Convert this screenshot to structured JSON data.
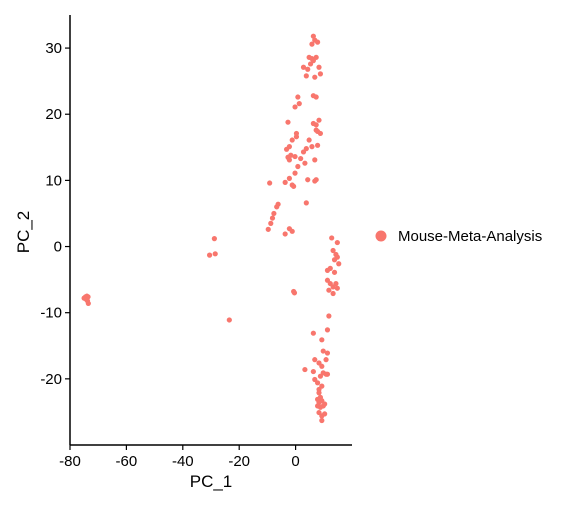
{
  "chart_data": {
    "type": "scatter",
    "title": "",
    "xlabel": "PC_1",
    "ylabel": "PC_2",
    "xlim": [
      -80,
      20
    ],
    "ylim": [
      -30,
      35
    ],
    "xticks": [
      -80,
      -60,
      -40,
      -20,
      0
    ],
    "yticks": [
      -20,
      -10,
      0,
      10,
      20,
      30
    ],
    "grid": false,
    "legend": {
      "position": "right"
    },
    "series": [
      {
        "name": "Mouse-Meta-Analysis",
        "color": "#F8766D",
        "points": [
          [
            -75,
            -7.8
          ],
          [
            -74.5,
            -7.6
          ],
          [
            -74,
            -7.5
          ],
          [
            -73.6,
            -7.6
          ],
          [
            -73.8,
            -8.2
          ],
          [
            -73.5,
            -8.6
          ],
          [
            -74.2,
            -8.0
          ],
          [
            -30.5,
            -1.3
          ],
          [
            -28.5,
            -1.1
          ],
          [
            -28.8,
            1.2
          ],
          [
            -23.5,
            -11.1
          ],
          [
            -9.7,
            2.6
          ],
          [
            -8.8,
            3.5
          ],
          [
            -8.2,
            4.3
          ],
          [
            -7.7,
            5.0
          ],
          [
            -6.7,
            6.0
          ],
          [
            -6.2,
            6.4
          ],
          [
            -9.2,
            9.6
          ],
          [
            -3.7,
            1.9
          ],
          [
            -2.2,
            2.7
          ],
          [
            -1.2,
            2.3
          ],
          [
            -3.2,
            14.7
          ],
          [
            -2.7,
            13.5
          ],
          [
            -2.2,
            13.1
          ],
          [
            -1.7,
            13.8
          ],
          [
            -0.2,
            13.6
          ],
          [
            -2.2,
            15.1
          ],
          [
            -1.2,
            16.1
          ],
          [
            0.3,
            16.6
          ],
          [
            -2.7,
            18.8
          ],
          [
            -3.7,
            9.7
          ],
          [
            -2.2,
            10.3
          ],
          [
            -1.2,
            9.3
          ],
          [
            -0.7,
            9.1
          ],
          [
            -0.2,
            11.1
          ],
          [
            0.8,
            12.1
          ],
          [
            1.8,
            13.3
          ],
          [
            2.8,
            14.3
          ],
          [
            3.8,
            14.8
          ],
          [
            4.8,
            16.1
          ],
          [
            5.8,
            15.1
          ],
          [
            6.8,
            13.1
          ],
          [
            3.3,
            12.6
          ],
          [
            7.8,
            15.3
          ],
          [
            4.3,
            10.1
          ],
          [
            6.8,
            9.9
          ],
          [
            7.3,
            10.1
          ],
          [
            3.8,
            6.6
          ],
          [
            7.3,
            18.4
          ],
          [
            8.3,
            19.1
          ],
          [
            6.3,
            18.6
          ],
          [
            7.3,
            17.6
          ],
          [
            8.8,
            17.1
          ],
          [
            7.8,
            17.4
          ],
          [
            0.3,
            17.1
          ],
          [
            -0.2,
            21.1
          ],
          [
            1.3,
            21.6
          ],
          [
            0.8,
            22.6
          ],
          [
            6.3,
            22.8
          ],
          [
            7.3,
            22.6
          ],
          [
            2.8,
            27.1
          ],
          [
            4.3,
            26.8
          ],
          [
            5.3,
            27.6
          ],
          [
            6.3,
            28.1
          ],
          [
            7.3,
            28.6
          ],
          [
            4.8,
            28.6
          ],
          [
            5.8,
            28.4
          ],
          [
            8.3,
            27.1
          ],
          [
            3.8,
            25.8
          ],
          [
            6.8,
            25.6
          ],
          [
            8.8,
            26.1
          ],
          [
            5.8,
            30.6
          ],
          [
            6.8,
            31.2
          ],
          [
            7.8,
            30.9
          ],
          [
            6.3,
            31.8
          ],
          [
            -0.7,
            -6.8
          ],
          [
            -0.4,
            -7.0
          ],
          [
            12.8,
            1.3
          ],
          [
            14.8,
            0.6
          ],
          [
            13.3,
            -0.6
          ],
          [
            14.3,
            -1.2
          ],
          [
            13.8,
            -2.0
          ],
          [
            15.3,
            -2.6
          ],
          [
            14.8,
            -1.6
          ],
          [
            11.3,
            -3.6
          ],
          [
            12.3,
            -3.3
          ],
          [
            13.8,
            -3.9
          ],
          [
            11.3,
            -5.1
          ],
          [
            12.3,
            -5.6
          ],
          [
            13.3,
            -6.1
          ],
          [
            14.3,
            -5.6
          ],
          [
            14.8,
            -6.3
          ],
          [
            13.3,
            -7.1
          ],
          [
            11.8,
            -6.6
          ],
          [
            11.8,
            -10.5
          ],
          [
            11.3,
            -12.6
          ],
          [
            9.3,
            -14.1
          ],
          [
            6.3,
            -13.1
          ],
          [
            9.8,
            -15.8
          ],
          [
            11.3,
            -16.1
          ],
          [
            6.8,
            -17.1
          ],
          [
            8.3,
            -17.6
          ],
          [
            10.8,
            -17.1
          ],
          [
            9.3,
            -18.1
          ],
          [
            9.8,
            -19.1
          ],
          [
            11.3,
            -19.3
          ],
          [
            8.8,
            -19.6
          ],
          [
            3.3,
            -18.6
          ],
          [
            6.3,
            -18.9
          ],
          [
            6.8,
            -20.1
          ],
          [
            7.8,
            -20.6
          ],
          [
            8.3,
            -21.6
          ],
          [
            9.3,
            -21.1
          ],
          [
            8.3,
            -22.1
          ],
          [
            8.8,
            -22.8
          ],
          [
            7.8,
            -23.1
          ],
          [
            9.3,
            -23.3
          ],
          [
            8.3,
            -23.6
          ],
          [
            9.8,
            -24.1
          ],
          [
            8.8,
            -24.3
          ],
          [
            10.3,
            -23.8
          ],
          [
            7.8,
            -24.1
          ],
          [
            8.3,
            -25.1
          ],
          [
            9.3,
            -25.6
          ],
          [
            10.3,
            -25.3
          ],
          [
            9.3,
            -26.3
          ],
          [
            10.8,
            -19.3
          ]
        ]
      }
    ]
  }
}
